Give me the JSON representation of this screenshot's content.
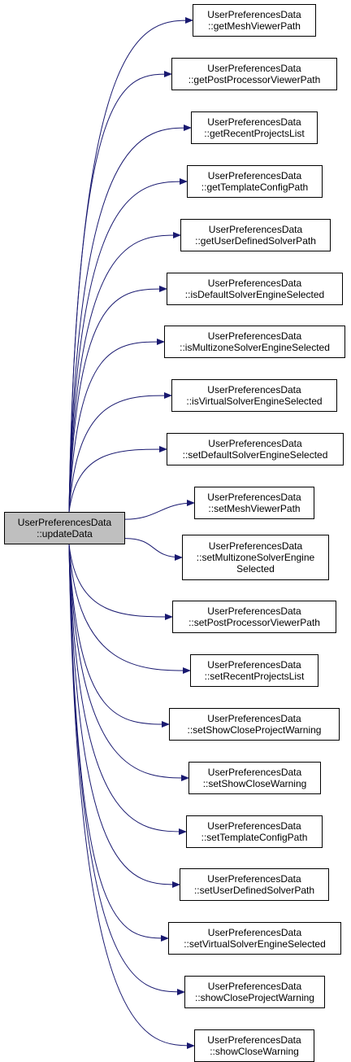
{
  "graph": {
    "edge_color": "#191970",
    "root": {
      "lines": [
        "UserPreferencesData",
        "::updateData"
      ],
      "fill": "#bfbfbf"
    },
    "callees": [
      {
        "lines": [
          "UserPreferencesData",
          "::getMeshViewerPath"
        ]
      },
      {
        "lines": [
          "UserPreferencesData",
          "::getPostProcessorViewerPath"
        ]
      },
      {
        "lines": [
          "UserPreferencesData",
          "::getRecentProjectsList"
        ]
      },
      {
        "lines": [
          "UserPreferencesData",
          "::getTemplateConfigPath"
        ]
      },
      {
        "lines": [
          "UserPreferencesData",
          "::getUserDefinedSolverPath"
        ]
      },
      {
        "lines": [
          "UserPreferencesData",
          "::isDefaultSolverEngineSelected"
        ]
      },
      {
        "lines": [
          "UserPreferencesData",
          "::isMultizoneSolverEngineSelected"
        ]
      },
      {
        "lines": [
          "UserPreferencesData",
          "::isVirtualSolverEngineSelected"
        ]
      },
      {
        "lines": [
          "UserPreferencesData",
          "::setDefaultSolverEngineSelected"
        ]
      },
      {
        "lines": [
          "UserPreferencesData",
          "::setMeshViewerPath"
        ]
      },
      {
        "lines": [
          "UserPreferencesData",
          "::setMultizoneSolverEngine",
          "Selected"
        ]
      },
      {
        "lines": [
          "UserPreferencesData",
          "::setPostProcessorViewerPath"
        ]
      },
      {
        "lines": [
          "UserPreferencesData",
          "::setRecentProjectsList"
        ]
      },
      {
        "lines": [
          "UserPreferencesData",
          "::setShowCloseProjectWarning"
        ]
      },
      {
        "lines": [
          "UserPreferencesData",
          "::setShowCloseWarning"
        ]
      },
      {
        "lines": [
          "UserPreferencesData",
          "::setTemplateConfigPath"
        ]
      },
      {
        "lines": [
          "UserPreferencesData",
          "::setUserDefinedSolverPath"
        ]
      },
      {
        "lines": [
          "UserPreferencesData",
          "::setVirtualSolverEngineSelected"
        ]
      },
      {
        "lines": [
          "UserPreferencesData",
          "::showCloseProjectWarning"
        ]
      },
      {
        "lines": [
          "UserPreferencesData",
          "::showCloseWarning"
        ]
      }
    ]
  }
}
